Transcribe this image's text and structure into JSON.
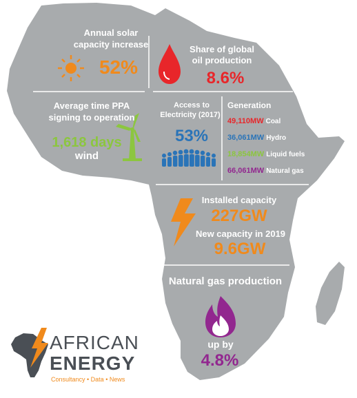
{
  "colors": {
    "map": "#a8abad",
    "orange": "#f08a1c",
    "red": "#e8262a",
    "green": "#8cc63f",
    "blue": "#2a74b8",
    "purple": "#92278f",
    "logo_grey": "#4a4f55"
  },
  "solar": {
    "label_line1": "Annual solar",
    "label_line2": "capacity increase",
    "value": "52%",
    "icon": "sun-icon"
  },
  "oil": {
    "label_line1": "Share of global",
    "label_line2": "oil production",
    "value": "8.6%",
    "icon": "oil-drop-icon"
  },
  "ppa": {
    "label_line1": "Average time PPA",
    "label_line2": "signing to operation",
    "value": "1,618 days",
    "sub": "wind",
    "icon": "wind-turbine-icon"
  },
  "access": {
    "label_line1": "Access to",
    "label_line2": "Electricity (2017)",
    "value": "53%",
    "icon": "people-icon"
  },
  "generation": {
    "title": "Generation",
    "items": [
      {
        "mw": "49,110MW",
        "label": "Coal"
      },
      {
        "mw": "36,061MW",
        "label": "Hydro"
      },
      {
        "mw": "18,854MW",
        "label": "Liquid fuels"
      },
      {
        "mw": "66,061MW",
        "label": "Natural gas"
      }
    ]
  },
  "capacity": {
    "label": "Installed capacity",
    "value": "227GW",
    "new_label": "New capacity in 2019",
    "new_value": "9.6GW",
    "icon": "lightning-icon"
  },
  "gas": {
    "label": "Natural gas production",
    "up_label": "up by",
    "value": "4.8%",
    "icon": "flame-icon"
  },
  "logo": {
    "line1": "AFRICAN",
    "line2": "ENERGY",
    "tagline": "Consultancy • Data • News"
  }
}
